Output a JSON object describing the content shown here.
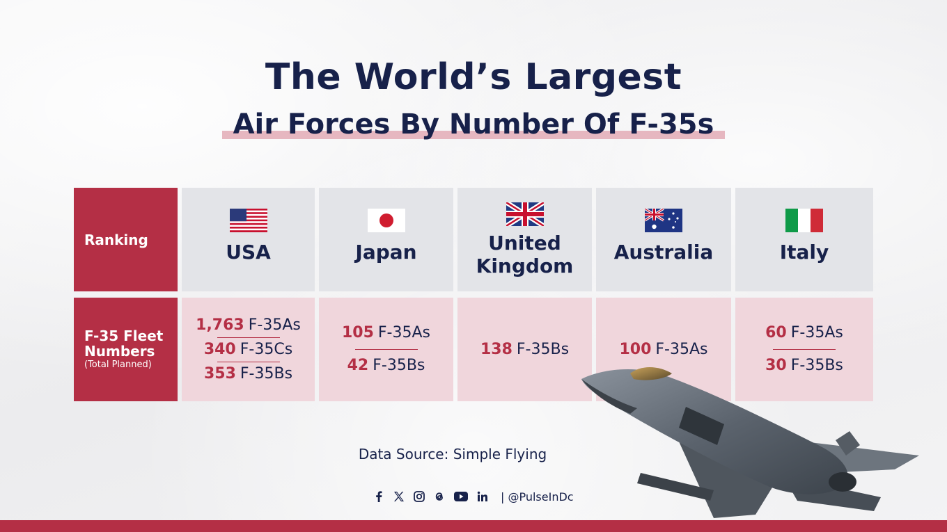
{
  "title": {
    "line1": "The World’s Largest",
    "line2": "Air Forces By Number Of F-35s"
  },
  "table": {
    "header_label": "Ranking",
    "data_label": "F-35 Fleet Numbers",
    "data_sublabel": "(Total Planned)",
    "countries": [
      {
        "name": "USA",
        "flag": "us-flag-icon",
        "entries": [
          {
            "num": "1,763",
            "type": "F-35As"
          },
          {
            "num": "340",
            "type": "F-35Cs"
          },
          {
            "num": "353",
            "type": "F-35Bs"
          }
        ]
      },
      {
        "name": "Japan",
        "flag": "japan-flag-icon",
        "entries": [
          {
            "num": "105",
            "type": "F-35As"
          },
          {
            "num": "42",
            "type": "F-35Bs"
          }
        ]
      },
      {
        "name_line1": "United",
        "name_line2": "Kingdom",
        "flag": "uk-flag-icon",
        "entries": [
          {
            "num": "138",
            "type": "F-35Bs"
          }
        ]
      },
      {
        "name": "Australia",
        "flag": "australia-flag-icon",
        "entries": [
          {
            "num": "100",
            "type": "F-35As"
          }
        ]
      },
      {
        "name": "Italy",
        "flag": "italy-flag-icon",
        "entries": [
          {
            "num": "60",
            "type": "F-35As"
          },
          {
            "num": "30",
            "type": "F-35Bs"
          }
        ]
      }
    ]
  },
  "source": "Data Source: Simple Flying",
  "social": {
    "icons": [
      "facebook-icon",
      "x-icon",
      "instagram-icon",
      "threads-icon",
      "youtube-icon",
      "linkedin-icon"
    ],
    "handle": "| @PulseInDc"
  },
  "colors": {
    "accent": "#b42f45",
    "navy": "#17214a",
    "header_bg": "#e3e4e8",
    "data_bg": "#f0d6dc",
    "highlight": "#e6b7c0"
  }
}
